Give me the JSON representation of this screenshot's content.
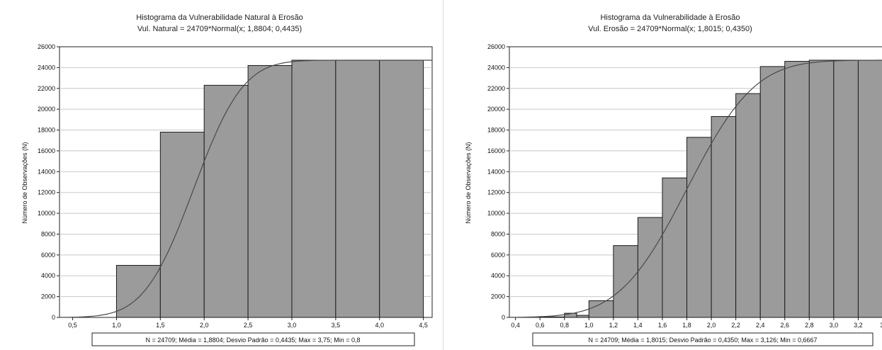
{
  "chart_data": [
    {
      "type": "bar",
      "title": "Histograma da Vulnerabilidade Natural à Erosão",
      "subtitle": "Vul. Natural = 24709*Normal(x; 1,8804; 0,4435)",
      "xlabel": "",
      "ylabel": "Número de Observações (N)",
      "ylim": [
        0,
        26000
      ],
      "xlim": [
        0.35,
        4.6
      ],
      "x_ticks": [
        "0,5",
        "1,0",
        "1,5",
        "2,0",
        "2,5",
        "3,0",
        "3,5",
        "4,0",
        "4,5"
      ],
      "y_ticks": [
        "0",
        "2000",
        "4000",
        "6000",
        "8000",
        "10000",
        "12000",
        "14000",
        "16000",
        "18000",
        "20000",
        "22000",
        "24000",
        "26000"
      ],
      "bins": [
        {
          "from": 0.5,
          "to": 1.0,
          "value": 0
        },
        {
          "from": 1.0,
          "to": 1.5,
          "value": 5000
        },
        {
          "from": 1.5,
          "to": 2.0,
          "value": 17800
        },
        {
          "from": 2.0,
          "to": 2.5,
          "value": 22300
        },
        {
          "from": 2.5,
          "to": 3.0,
          "value": 24200
        },
        {
          "from": 3.0,
          "to": 3.5,
          "value": 24709
        },
        {
          "from": 3.5,
          "to": 4.0,
          "value": 24709
        },
        {
          "from": 4.0,
          "to": 4.5,
          "value": 24709
        }
      ],
      "fit": {
        "n": 24709,
        "mean": 1.8804,
        "sd": 0.4435
      },
      "stats": "N = 24709; Média = 1,8804; Desvio Padrão = 0,4435; Max = 3,75; Min = 0,8",
      "grid": true,
      "colors": {
        "bar": "#9b9b9b",
        "bar_edge": "#1a1a1a",
        "curve": "#4a4a4a"
      }
    },
    {
      "type": "bar",
      "title": "Histograma da Vulnerabilidade à Erosão",
      "subtitle": "Vul. Erosão = 24709*Normal(x; 1,8015; 0,4350)",
      "xlabel": "",
      "ylabel": "Número de Observações (N)",
      "ylim": [
        0,
        26000
      ],
      "xlim": [
        0.35,
        3.4
      ],
      "x_ticks": [
        "0,4",
        "0,6",
        "0,8",
        "1,0",
        "1,2",
        "1,4",
        "1,6",
        "1,8",
        "2,0",
        "2,2",
        "2,4",
        "2,6",
        "2,8",
        "3,0",
        "3,2",
        "3,"
      ],
      "y_ticks": [
        "0",
        "2000",
        "4000",
        "6000",
        "8000",
        "10000",
        "12000",
        "14000",
        "16000",
        "18000",
        "20000",
        "22000",
        "24000",
        "26000"
      ],
      "bins": [
        {
          "from": 0.4,
          "to": 0.6,
          "value": 0
        },
        {
          "from": 0.6,
          "to": 0.8,
          "value": 50
        },
        {
          "from": 0.8,
          "to": 0.9,
          "value": 400
        },
        {
          "from": 0.9,
          "to": 1.0,
          "value": 200
        },
        {
          "from": 1.0,
          "to": 1.2,
          "value": 1600
        },
        {
          "from": 1.2,
          "to": 1.4,
          "value": 6900
        },
        {
          "from": 1.4,
          "to": 1.6,
          "value": 9600
        },
        {
          "from": 1.6,
          "to": 1.8,
          "value": 13400
        },
        {
          "from": 1.8,
          "to": 2.0,
          "value": 17300
        },
        {
          "from": 2.0,
          "to": 2.2,
          "value": 19300
        },
        {
          "from": 2.2,
          "to": 2.4,
          "value": 21500
        },
        {
          "from": 2.4,
          "to": 2.6,
          "value": 24100
        },
        {
          "from": 2.6,
          "to": 2.8,
          "value": 24600
        },
        {
          "from": 2.8,
          "to": 3.0,
          "value": 24709
        },
        {
          "from": 3.0,
          "to": 3.2,
          "value": 24709
        },
        {
          "from": 3.2,
          "to": 3.4,
          "value": 24709
        }
      ],
      "fit": {
        "n": 24709,
        "mean": 1.8015,
        "sd": 0.435
      },
      "stats": "N = 24709; Média = 1,8015; Desvio Padrão = 0,4350; Max = 3,126; Min = 0,6667",
      "grid": true,
      "colors": {
        "bar": "#9b9b9b",
        "bar_edge": "#1a1a1a",
        "curve": "#4a4a4a"
      }
    }
  ]
}
